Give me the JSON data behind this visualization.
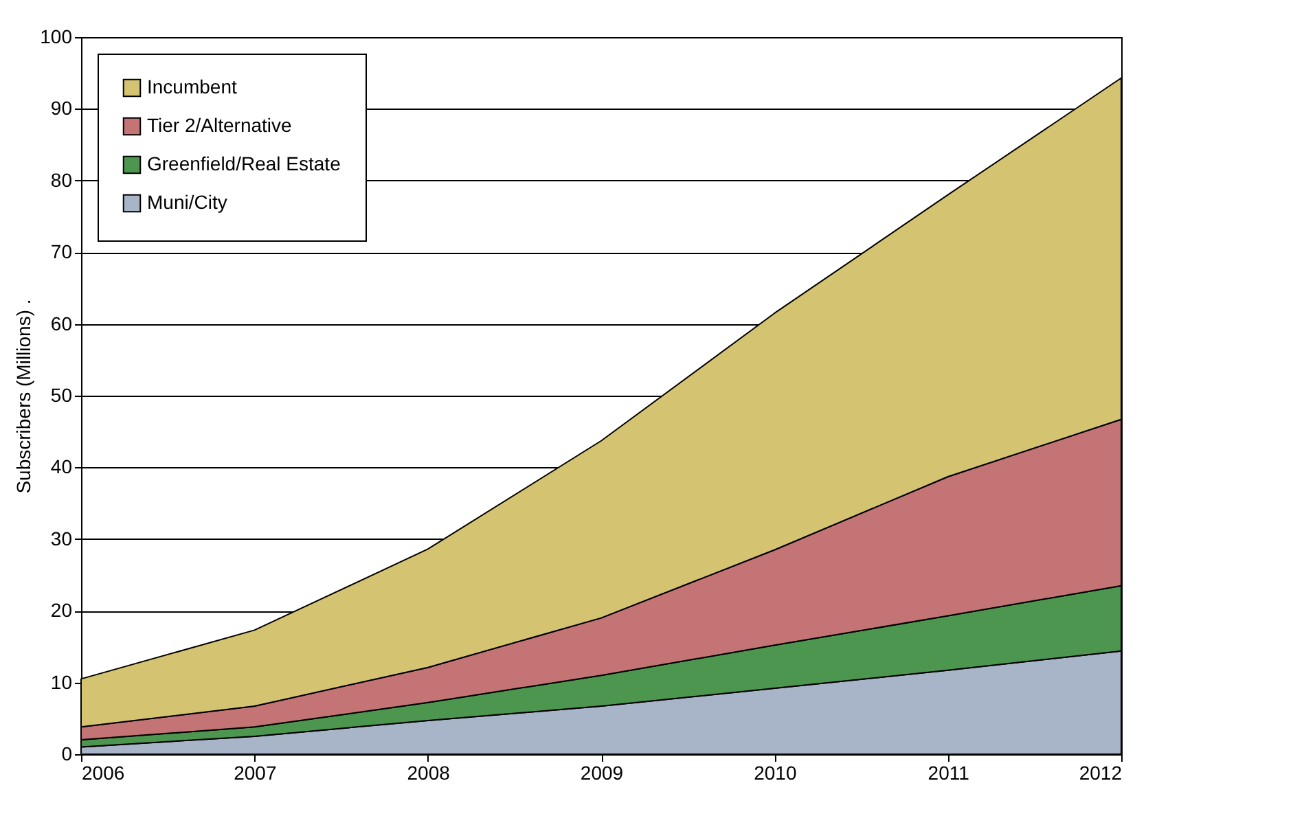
{
  "chart_data": {
    "type": "area",
    "stacked": true,
    "ylabel": "Subscribers (Millions) .",
    "x": [
      2006,
      2007,
      2008,
      2009,
      2010,
      2011,
      2012
    ],
    "xlim": [
      2006,
      2012
    ],
    "xticks": [
      2006,
      2007,
      2008,
      2009,
      2010,
      2011,
      2012
    ],
    "ylim": [
      0,
      100
    ],
    "yticks": [
      0,
      10,
      20,
      30,
      40,
      50,
      60,
      70,
      80,
      90,
      100
    ],
    "grid": "y",
    "legend": "top left",
    "series": [
      {
        "name": "Muni/City",
        "color": "#a8b4c8",
        "values": [
          1,
          2.5,
          4.7,
          6.7,
          9.2,
          11.7,
          14.4
        ]
      },
      {
        "name": "Greenfield/Real Estate",
        "color": "#4c9650",
        "values": [
          1,
          1.3,
          2.5,
          4.3,
          6,
          7.6,
          9.1
        ]
      },
      {
        "name": "Tier 2/Alternative",
        "color": "#c47474",
        "values": [
          1.8,
          2.9,
          4.9,
          8,
          13.3,
          19.4,
          23.2
        ]
      },
      {
        "name": "Incumbent",
        "color": "#d4c472",
        "values": [
          6.7,
          10.6,
          16.5,
          24.7,
          33,
          39.3,
          47.6
        ]
      }
    ]
  }
}
